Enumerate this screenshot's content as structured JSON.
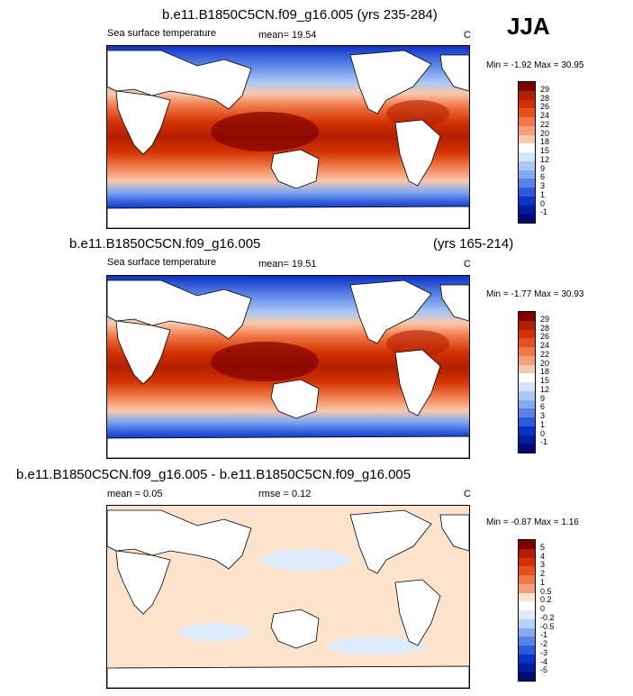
{
  "season": "JJA",
  "panels": [
    {
      "title": "b.e11.B1850C5CN.f09_g16.005 (yrs 235-284)",
      "title_right": "",
      "left_label": "Sea surface temperature",
      "mean_text": "mean=  19.54",
      "extra_text": "",
      "units": "C",
      "minmax": "Min = -1.92 Max = 30.95",
      "colorbar_labels": [
        "29",
        "28",
        "26",
        "24",
        "22",
        "20",
        "18",
        "15",
        "12",
        "9",
        "6",
        "3",
        "1",
        "0",
        "-1"
      ]
    },
    {
      "title": "b.e11.B1850C5CN.f09_g16.005",
      "title_right": "(yrs 165-214)",
      "left_label": "Sea surface temperature",
      "mean_text": "mean=  19.51",
      "extra_text": "",
      "units": "C",
      "minmax": "Min = -1.77 Max = 30.93",
      "colorbar_labels": [
        "29",
        "28",
        "26",
        "24",
        "22",
        "20",
        "18",
        "15",
        "12",
        "9",
        "6",
        "3",
        "1",
        "0",
        "-1"
      ]
    },
    {
      "title": "b.e11.B1850C5CN.f09_g16.005 - b.e11.B1850C5CN.f09_g16.005",
      "title_right": "",
      "left_label": "",
      "mean_text": "mean =  0.05",
      "extra_text": "rmse =  0.12",
      "units": "C",
      "minmax": "Min = -0.87 Max =  1.16",
      "colorbar_labels": [
        "5",
        "4",
        "3",
        "2",
        "1",
        "0.5",
        "0.2",
        "0",
        "-0.2",
        "-0.5",
        "-1",
        "-2",
        "-3",
        "-4",
        "-5"
      ]
    }
  ],
  "colors": {
    "sst_scale": [
      "#7f0000",
      "#b41e00",
      "#d23200",
      "#e6501e",
      "#f07846",
      "#f5a078",
      "#fac8aa",
      "#ffffff",
      "#d2e6fa",
      "#aac8f5",
      "#82aaf0",
      "#5a82e6",
      "#2d5adc",
      "#0a32c8",
      "#001ea0",
      "#000a78"
    ],
    "diff_scale": [
      "#7f0000",
      "#b41e00",
      "#d23200",
      "#e6501e",
      "#f07846",
      "#f5a078",
      "#fde2cc",
      "#ffffff",
      "#dcebfa",
      "#b4d2f5",
      "#82aaf0",
      "#5a82e6",
      "#2d5adc",
      "#0a32c8",
      "#001ea0",
      "#000a78"
    ]
  }
}
